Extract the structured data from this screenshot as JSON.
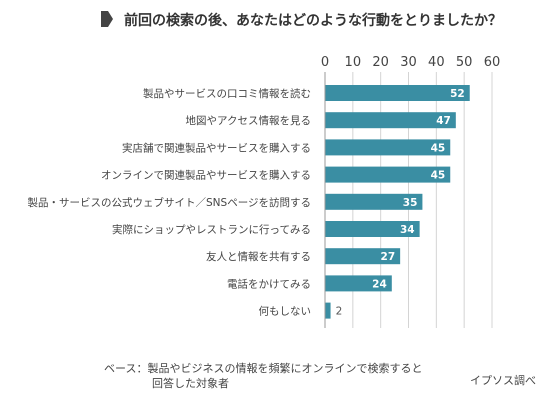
{
  "chart_data": {
    "type": "bar",
    "orientation": "horizontal",
    "title": "前回の検索の後、あなたはどのような行動をとりましたか？",
    "categories": [
      "製品やサービスの口コミ情報を読む",
      "地図やアクセス情報を見る",
      "実店舗で関連製品やサービスを購入する",
      "オンラインで関連製品やサービスを購入する",
      "製品・サービスの公式ウェブサイト／SNSページを訪問する",
      "実際にショップやレストランに行ってみる",
      "友人と情報を共有する",
      "電話をかけてみる",
      "何もしない"
    ],
    "values": [
      52,
      47,
      45,
      45,
      35,
      34,
      27,
      24,
      2
    ],
    "xlim": [
      0,
      60
    ],
    "x_ticks": [
      0,
      10,
      20,
      30,
      40,
      50,
      60
    ],
    "x_axis_position": "top",
    "grid": true,
    "bar_color": "#3a8ea3",
    "label_color_inside": "#ffffff",
    "label_color_outside": "#555555",
    "footnote_lines": [
      "ベース：製品やビジネスの情報を頻繁にオンラインで検索すると",
      "回答した対象者"
    ],
    "source": "イプソス調べ"
  }
}
